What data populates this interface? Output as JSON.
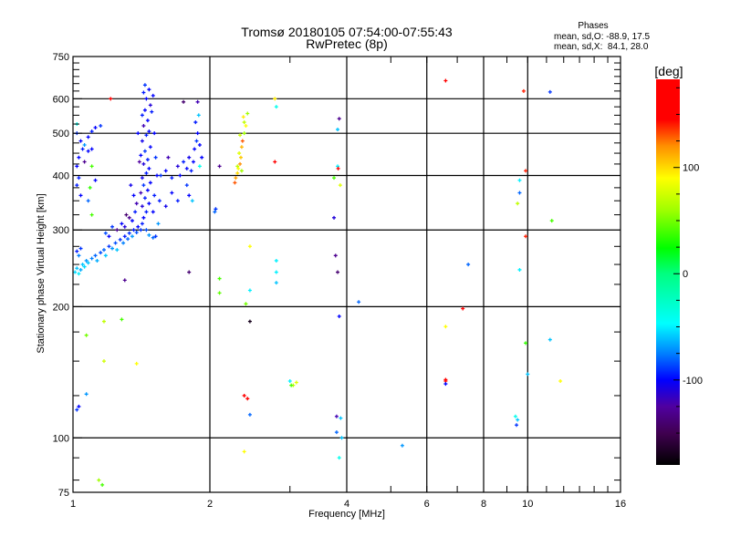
{
  "chart_data": {
    "type": "scatter",
    "title": "Tromsø 20180105 07:54:00-07:55:43",
    "subtitle": "RwPretec (8p)",
    "stats": {
      "heading": "Phases",
      "o_line": "mean, sd,O: -88.9, 17.5",
      "x_line": "mean, sd,X:  84.1, 28.0"
    },
    "xlabel": "Frequency [MHz]",
    "ylabel": "Stationary phase Virtual Height [km]",
    "xscale": "log",
    "yscale": "log",
    "xlim": [
      1,
      16
    ],
    "ylim": [
      75,
      750
    ],
    "xticks": [
      {
        "v": 1,
        "label": "1"
      },
      {
        "v": 2,
        "label": "2"
      },
      {
        "v": 4,
        "label": "4"
      },
      {
        "v": 6,
        "label": "6"
      },
      {
        "v": 8,
        "label": "8"
      },
      {
        "v": 10,
        "label": "10"
      },
      {
        "v": 16,
        "label": "16"
      }
    ],
    "yticks": [
      {
        "v": 75,
        "label": "75"
      },
      {
        "v": 100,
        "label": "100"
      },
      {
        "v": 200,
        "label": "200"
      },
      {
        "v": 300,
        "label": "300"
      },
      {
        "v": 400,
        "label": "400"
      },
      {
        "v": 500,
        "label": "500"
      },
      {
        "v": 600,
        "label": "600"
      },
      {
        "v": 750,
        "label": "750"
      }
    ],
    "xgrid": [
      2,
      4,
      6,
      8,
      10
    ],
    "ygrid": [
      100,
      200,
      300,
      400,
      500,
      600
    ],
    "colorbar": {
      "label": "[deg]",
      "range": [
        -180,
        183
      ],
      "ticks": [
        {
          "v": 100,
          "label": "100"
        },
        {
          "v": 0,
          "label": "0"
        },
        {
          "v": -100,
          "label": "-100"
        }
      ],
      "stops": [
        [
          -180,
          "#000000"
        ],
        [
          -150,
          "#400050"
        ],
        [
          -125,
          "#5000a0"
        ],
        [
          -100,
          "#0000ff"
        ],
        [
          -75,
          "#0080ff"
        ],
        [
          -47,
          "#00ffff"
        ],
        [
          0,
          "#00ff80"
        ],
        [
          24,
          "#00ff00"
        ],
        [
          60,
          "#a0ff00"
        ],
        [
          90,
          "#ffff00"
        ],
        [
          120,
          "#ff9000"
        ],
        [
          145,
          "#ff0000"
        ],
        [
          183,
          "#ff0000"
        ]
      ]
    },
    "points_columns": [
      "frequency_mhz",
      "height_km",
      "phase_deg"
    ],
    "points": [
      [
        1.01,
        240,
        -55
      ],
      [
        1.02,
        245,
        -60
      ],
      [
        1.03,
        238,
        -50
      ],
      [
        1.04,
        243,
        -65
      ],
      [
        1.05,
        250,
        -60
      ],
      [
        1.06,
        247,
        -55
      ],
      [
        1.07,
        255,
        -70
      ],
      [
        1.08,
        252,
        -60
      ],
      [
        1.1,
        258,
        -75
      ],
      [
        1.12,
        262,
        -80
      ],
      [
        1.13,
        255,
        -65
      ],
      [
        1.15,
        266,
        -85
      ],
      [
        1.17,
        270,
        -80
      ],
      [
        1.18,
        262,
        -60
      ],
      [
        1.2,
        275,
        -90
      ],
      [
        1.22,
        272,
        -70
      ],
      [
        1.24,
        280,
        -85
      ],
      [
        1.25,
        270,
        -60
      ],
      [
        1.27,
        285,
        -90
      ],
      [
        1.29,
        280,
        -75
      ],
      [
        1.3,
        290,
        -95
      ],
      [
        1.32,
        286,
        -80
      ],
      [
        1.33,
        295,
        -90
      ],
      [
        1.35,
        290,
        -70
      ],
      [
        1.36,
        300,
        -95
      ],
      [
        1.38,
        296,
        -85
      ],
      [
        1.39,
        305,
        -100
      ],
      [
        1.41,
        300,
        -90
      ],
      [
        1.42,
        310,
        -95
      ],
      [
        1.45,
        300,
        -85
      ],
      [
        1.47,
        292,
        -70
      ],
      [
        1.5,
        288,
        -80
      ],
      [
        1.52,
        290,
        -90
      ],
      [
        1.02,
        268,
        -95
      ],
      [
        1.04,
        272,
        -90
      ],
      [
        1.03,
        262,
        -75
      ],
      [
        1.43,
        320,
        -100
      ],
      [
        1.45,
        330,
        -95
      ],
      [
        1.42,
        340,
        -110
      ],
      [
        1.47,
        345,
        -100
      ],
      [
        1.44,
        355,
        -95
      ],
      [
        1.41,
        365,
        -120
      ],
      [
        1.46,
        370,
        -100
      ],
      [
        1.43,
        380,
        -90
      ],
      [
        1.48,
        385,
        -100
      ],
      [
        1.42,
        395,
        -105
      ],
      [
        1.45,
        405,
        -95
      ],
      [
        1.47,
        415,
        -100
      ],
      [
        1.43,
        425,
        -110
      ],
      [
        1.46,
        435,
        -95
      ],
      [
        1.41,
        445,
        -100
      ],
      [
        1.44,
        455,
        -90
      ],
      [
        1.48,
        465,
        -100
      ],
      [
        1.42,
        480,
        -105
      ],
      [
        1.45,
        495,
        -95
      ],
      [
        1.47,
        505,
        -100
      ],
      [
        1.43,
        520,
        -120
      ],
      [
        1.46,
        535,
        -100
      ],
      [
        1.42,
        550,
        -95
      ],
      [
        1.44,
        565,
        -100
      ],
      [
        1.48,
        580,
        -110
      ],
      [
        1.45,
        600,
        -100
      ],
      [
        1.43,
        620,
        -95
      ],
      [
        1.47,
        630,
        -100
      ],
      [
        1.44,
        645,
        -90
      ],
      [
        1.5,
        610,
        -100
      ],
      [
        1.49,
        560,
        -95
      ],
      [
        1.51,
        500,
        -100
      ],
      [
        1.52,
        440,
        -90
      ],
      [
        1.53,
        400,
        -100
      ],
      [
        1.51,
        360,
        -95
      ],
      [
        1.4,
        430,
        -125
      ],
      [
        1.39,
        500,
        -100
      ],
      [
        1.5,
        330,
        -100
      ],
      [
        1.55,
        350,
        -95
      ],
      [
        1.54,
        310,
        -70
      ],
      [
        1.25,
        300,
        -130
      ],
      [
        1.28,
        310,
        -100
      ],
      [
        1.3,
        305,
        -110
      ],
      [
        1.33,
        320,
        -130
      ],
      [
        1.35,
        315,
        -100
      ],
      [
        1.37,
        330,
        -95
      ],
      [
        1.38,
        345,
        -120
      ],
      [
        1.36,
        360,
        -100
      ],
      [
        1.34,
        380,
        -105
      ],
      [
        1.31,
        325,
        -140
      ],
      [
        1.22,
        305,
        -90
      ],
      [
        1.2,
        290,
        -100
      ],
      [
        1.18,
        295,
        -85
      ],
      [
        1.03,
        440,
        -100
      ],
      [
        1.05,
        460,
        -95
      ],
      [
        1.04,
        480,
        -100
      ],
      [
        1.02,
        500,
        -90
      ],
      [
        1.06,
        470,
        -70
      ],
      [
        1.08,
        490,
        -100
      ],
      [
        1.1,
        505,
        -95
      ],
      [
        1.12,
        515,
        -100
      ],
      [
        1.15,
        520,
        -90
      ],
      [
        1.02,
        420,
        -100
      ],
      [
        1.03,
        395,
        -95
      ],
      [
        1.06,
        430,
        -130
      ],
      [
        1.08,
        455,
        -100
      ],
      [
        1.1,
        460,
        -100
      ],
      [
        1.04,
        360,
        -100
      ],
      [
        1.02,
        380,
        -95
      ],
      [
        1.02,
        525,
        -40
      ],
      [
        1.12,
        390,
        -100
      ],
      [
        1.08,
        350,
        -80
      ],
      [
        1.56,
        400,
        -90
      ],
      [
        1.6,
        410,
        -100
      ],
      [
        1.65,
        395,
        -95
      ],
      [
        1.7,
        420,
        -110
      ],
      [
        1.72,
        400,
        -100
      ],
      [
        1.75,
        430,
        -95
      ],
      [
        1.78,
        415,
        -100
      ],
      [
        1.8,
        440,
        -105
      ],
      [
        1.82,
        410,
        -95
      ],
      [
        1.85,
        460,
        -100
      ],
      [
        1.87,
        480,
        -90
      ],
      [
        1.88,
        500,
        -100
      ],
      [
        1.86,
        530,
        -95
      ],
      [
        1.89,
        550,
        -60
      ],
      [
        1.9,
        470,
        -100
      ],
      [
        1.84,
        430,
        -100
      ],
      [
        1.78,
        380,
        -90
      ],
      [
        1.8,
        360,
        -100
      ],
      [
        1.83,
        350,
        -60
      ],
      [
        1.9,
        420,
        -40
      ],
      [
        1.92,
        440,
        -100
      ],
      [
        1.88,
        590,
        -120
      ],
      [
        1.7,
        350,
        -95
      ],
      [
        1.65,
        365,
        -100
      ],
      [
        1.6,
        340,
        -105
      ],
      [
        1.62,
        440,
        -120
      ],
      [
        1.1,
        420,
        40
      ],
      [
        1.09,
        375,
        35
      ],
      [
        1.1,
        325,
        40
      ],
      [
        2.1,
        232,
        40
      ],
      [
        2.1,
        215,
        45
      ],
      [
        2.27,
        385,
        130
      ],
      [
        2.28,
        395,
        115
      ],
      [
        2.3,
        405,
        100
      ],
      [
        2.31,
        415,
        90
      ],
      [
        2.33,
        425,
        120
      ],
      [
        2.34,
        440,
        105
      ],
      [
        2.32,
        450,
        80
      ],
      [
        2.35,
        465,
        110
      ],
      [
        2.36,
        480,
        130
      ],
      [
        2.33,
        495,
        75
      ],
      [
        2.38,
        500,
        60
      ],
      [
        2.4,
        520,
        90
      ],
      [
        2.37,
        545,
        95
      ],
      [
        2.42,
        555,
        60
      ],
      [
        2.38,
        530,
        70
      ],
      [
        2.35,
        410,
        60
      ],
      [
        2.3,
        420,
        70
      ],
      [
        2.05,
        330,
        -80
      ],
      [
        2.06,
        335,
        -90
      ],
      [
        2.1,
        420,
        -130
      ],
      [
        2.78,
        600,
        95
      ],
      [
        2.8,
        575,
        -40
      ],
      [
        2.78,
        430,
        150
      ],
      [
        3.85,
        540,
        -130
      ],
      [
        3.82,
        510,
        -60
      ],
      [
        3.82,
        420,
        -50
      ],
      [
        3.83,
        415,
        170
      ],
      [
        3.75,
        395,
        40
      ],
      [
        3.87,
        380,
        80
      ],
      [
        3.75,
        320,
        -110
      ],
      [
        3.78,
        262,
        -130
      ],
      [
        3.82,
        240,
        -140
      ],
      [
        2.45,
        275,
        90
      ],
      [
        2.4,
        203,
        50
      ],
      [
        2.45,
        218,
        -50
      ],
      [
        2.8,
        255,
        -50
      ],
      [
        2.8,
        240,
        -50
      ],
      [
        2.8,
        227,
        -60
      ],
      [
        2.45,
        185,
        -170
      ],
      [
        4.25,
        205,
        -80
      ],
      [
        3.85,
        190,
        -100
      ],
      [
        3.0,
        135,
        -50
      ],
      [
        3.05,
        132,
        70
      ],
      [
        3.1,
        134,
        80
      ],
      [
        3.02,
        132,
        40
      ],
      [
        2.38,
        125,
        150
      ],
      [
        2.42,
        123,
        170
      ],
      [
        2.45,
        113,
        -80
      ],
      [
        3.8,
        112,
        -120
      ],
      [
        3.88,
        111,
        -60
      ],
      [
        3.8,
        103,
        -80
      ],
      [
        3.9,
        100,
        -60
      ],
      [
        2.38,
        93,
        90
      ],
      [
        3.85,
        90,
        -40
      ],
      [
        5.3,
        96,
        -70
      ],
      [
        1.02,
        116,
        -90
      ],
      [
        1.03,
        118,
        -100
      ],
      [
        1.07,
        126,
        -70
      ],
      [
        1.07,
        172,
        50
      ],
      [
        1.17,
        185,
        70
      ],
      [
        1.28,
        187,
        40
      ],
      [
        1.17,
        150,
        75
      ],
      [
        1.38,
        148,
        90
      ],
      [
        1.14,
        80,
        60
      ],
      [
        1.16,
        78,
        40
      ],
      [
        1.3,
        230,
        -130
      ],
      [
        1.8,
        240,
        -140
      ],
      [
        1.75,
        590,
        -140
      ],
      [
        1.21,
        600,
        150
      ],
      [
        6.6,
        660,
        150
      ],
      [
        9.8,
        625,
        140
      ],
      [
        11.2,
        622,
        -90
      ],
      [
        9.9,
        410,
        140
      ],
      [
        9.6,
        390,
        -50
      ],
      [
        9.6,
        365,
        -80
      ],
      [
        9.5,
        345,
        70
      ],
      [
        11.3,
        315,
        40
      ],
      [
        9.9,
        290,
        140
      ],
      [
        7.4,
        250,
        -80
      ],
      [
        9.6,
        243,
        -50
      ],
      [
        6.6,
        180,
        90
      ],
      [
        7.2,
        198,
        150
      ],
      [
        9.9,
        165,
        35
      ],
      [
        11.2,
        168,
        -60
      ],
      [
        10.0,
        140,
        -60
      ],
      [
        11.8,
        135,
        90
      ],
      [
        6.6,
        136,
        170
      ],
      [
        6.6,
        135,
        150
      ],
      [
        6.6,
        133,
        -100
      ],
      [
        9.4,
        112,
        -40
      ],
      [
        9.5,
        110,
        -60
      ],
      [
        9.45,
        107,
        -90
      ]
    ]
  }
}
